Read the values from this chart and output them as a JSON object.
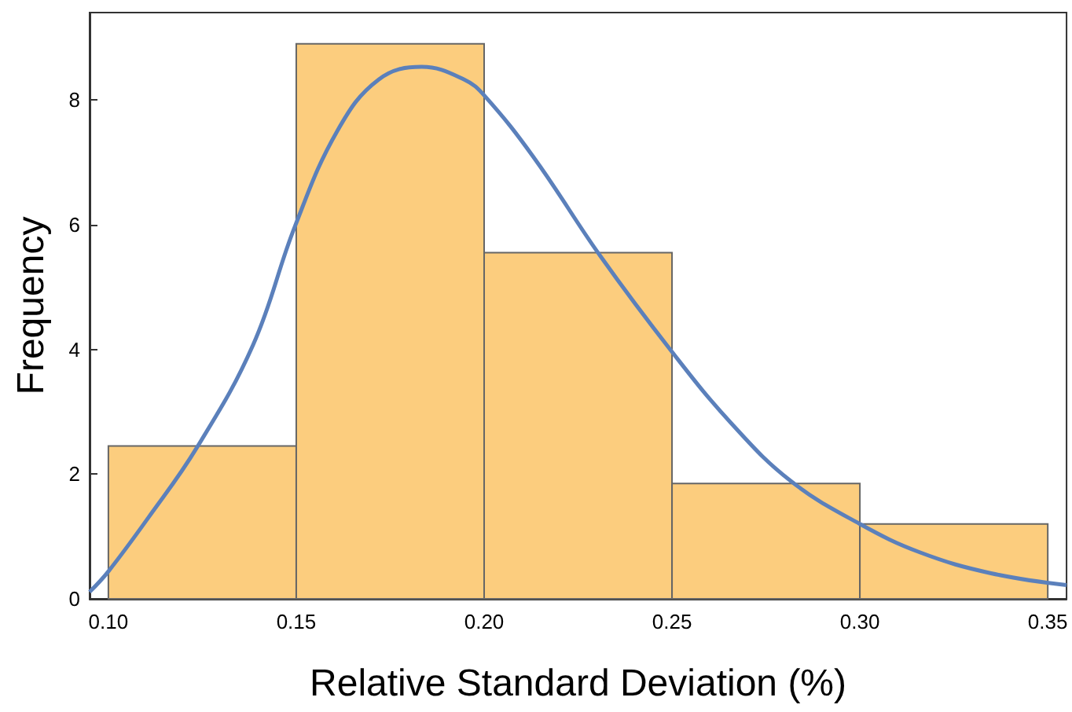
{
  "chart_data": {
    "type": "histogram",
    "xlabel": "Relative Standard Deviation (%)",
    "ylabel": "Frequency",
    "bins": [
      0.1,
      0.15,
      0.2,
      0.25,
      0.3,
      0.35
    ],
    "values": [
      2.45,
      8.9,
      5.55,
      1.85,
      1.2
    ],
    "color": "#fccd7e",
    "series": [
      {
        "type": "line",
        "color": "#5b80bb",
        "x": [
          0.095,
          0.1,
          0.1105,
          0.1236,
          0.1385,
          0.1497,
          0.161,
          0.172,
          0.1834,
          0.1946,
          0.2002,
          0.2133,
          0.231,
          0.25,
          0.2657,
          0.2816,
          0.3,
          0.3162,
          0.3349,
          0.355
        ],
        "values": [
          0.11,
          0.44,
          1.29,
          2.43,
          4.07,
          5.98,
          7.51,
          8.33,
          8.53,
          8.33,
          8.06,
          7.07,
          5.49,
          3.96,
          2.82,
          1.89,
          1.2,
          0.74,
          0.41,
          0.22
        ]
      }
    ],
    "xlim": [
      0.095,
      0.355
    ],
    "xticks": [
      {
        "value": 0.1,
        "label": "0.10"
      },
      0.15,
      {
        "value": 0.2,
        "label": "0.20"
      },
      0.25,
      {
        "value": 0.3,
        "label": "0.30"
      },
      0.35
    ],
    "ylim": [
      0,
      9.4
    ],
    "yticks": [
      0,
      2,
      4,
      6,
      8
    ],
    "grid": false,
    "marker": "none"
  }
}
